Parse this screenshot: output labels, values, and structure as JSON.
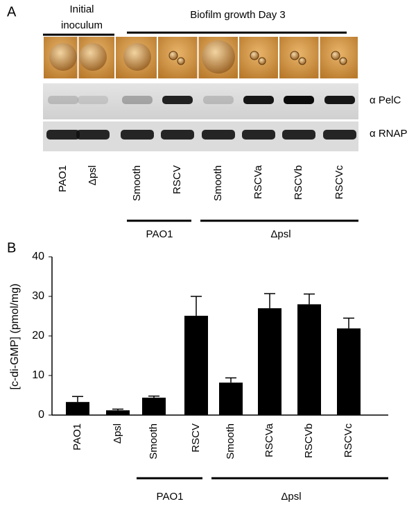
{
  "panel_a": {
    "label": "A",
    "header_initial": [
      "Initial",
      "inoculum"
    ],
    "header_biofilm": "Biofilm growth Day 3",
    "blot_labels": [
      "α PelC",
      "α RNAP"
    ],
    "lanes": [
      "PAO1",
      "Δpsl",
      "Smooth",
      "RSCV",
      "Smooth",
      "RSCVa",
      "RSCVb",
      "RSCVc"
    ],
    "groups": [
      "PAO1",
      "Δpsl"
    ]
  },
  "chart_data": {
    "type": "bar",
    "panel_label": "B",
    "y_label": "[c-di-GMP]  (pmol/mg)",
    "categories": [
      "PAO1",
      "Δpsl",
      "Smooth",
      "RSCV",
      "Smooth",
      "RSCVa",
      "RSCVb",
      "RSCVc"
    ],
    "values": [
      3.3,
      1.2,
      4.4,
      25.1,
      8.2,
      27,
      28,
      21.9
    ],
    "errors": [
      1.4,
      0.3,
      0.4,
      4.9,
      1.2,
      3.7,
      2.6,
      2.6
    ],
    "color": "#000000",
    "ylim": [
      0,
      40
    ],
    "yticks": [
      0,
      10,
      20,
      30,
      40
    ],
    "groups": [
      "PAO1",
      "Δpsl"
    ]
  }
}
